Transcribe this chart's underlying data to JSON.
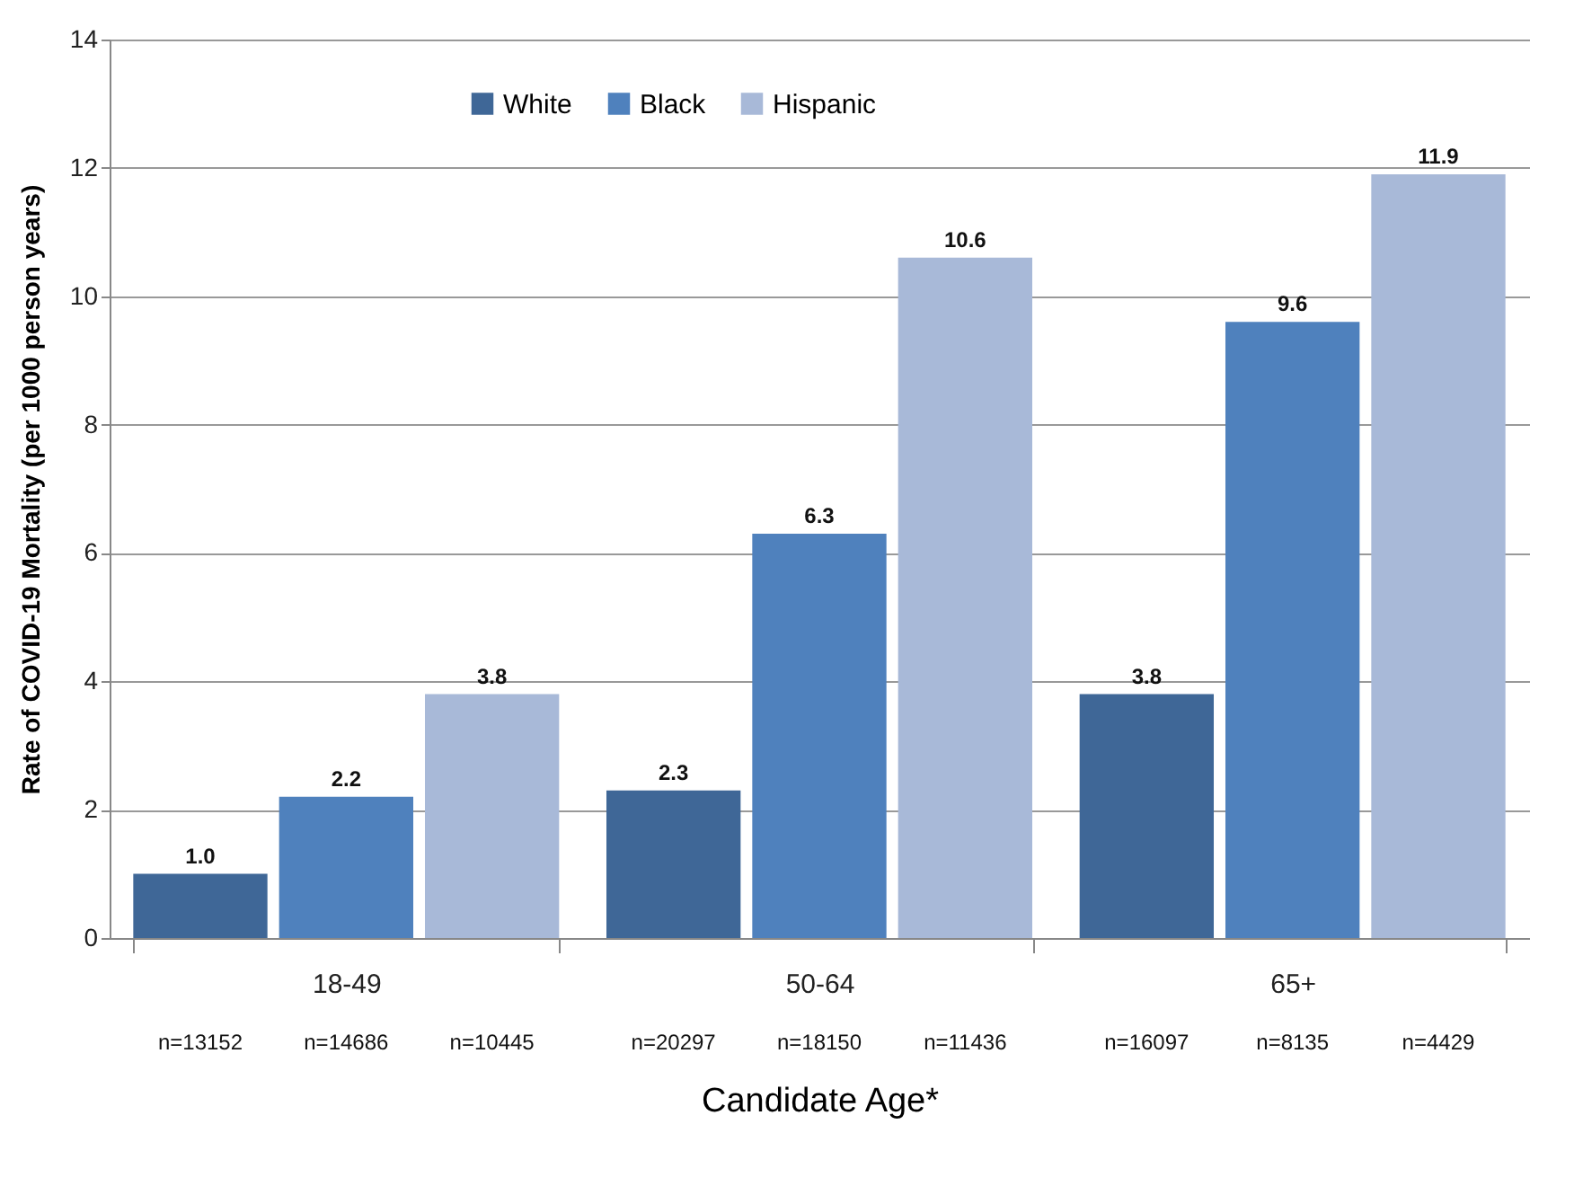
{
  "chart_data": {
    "type": "bar",
    "xlabel": "Candidate Age*",
    "ylabel": "Rate of COVID-19 Mortality (per 1000 person years)",
    "categories": [
      "18-49",
      "50-64",
      "65+"
    ],
    "series": [
      {
        "name": "White",
        "color": "#3f6797",
        "values": [
          1.0,
          2.3,
          3.8
        ],
        "value_labels": [
          "1.0",
          "2.3",
          "3.8"
        ]
      },
      {
        "name": "Black",
        "color": "#4f81bd",
        "values": [
          2.2,
          6.3,
          9.6
        ],
        "value_labels": [
          "2.2",
          "6.3",
          "9.6"
        ]
      },
      {
        "name": "Hispanic",
        "color": "#a8b9d8",
        "values": [
          3.8,
          10.6,
          11.9
        ],
        "value_labels": [
          "3.8",
          "10.6",
          "11.9"
        ]
      }
    ],
    "annotations": [
      "n=13152",
      "n=14686",
      "n=10445",
      "n=20297",
      "n=18150",
      "n=11436",
      "n=16097",
      "n=8135",
      "n=4429"
    ],
    "ylim": [
      0,
      14
    ],
    "yticks": [
      0,
      2,
      4,
      6,
      8,
      10,
      12,
      14
    ],
    "grid": "y",
    "legend": "top left"
  }
}
